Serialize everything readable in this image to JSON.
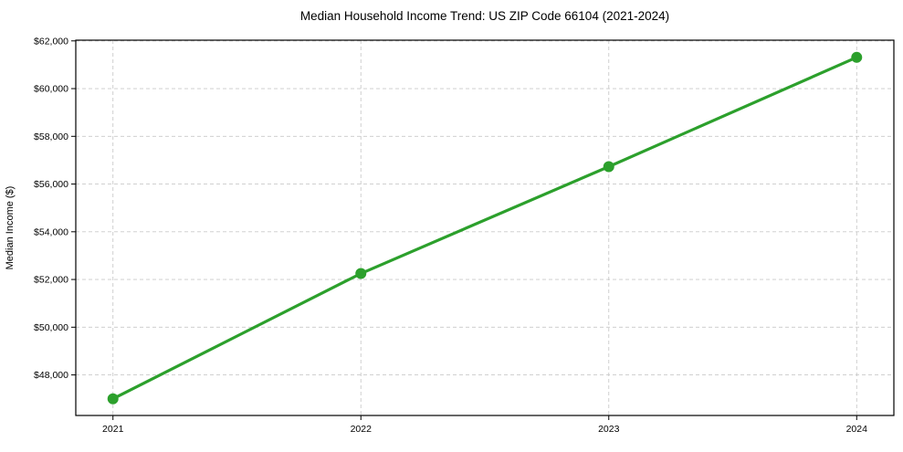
{
  "chart_data": {
    "type": "line",
    "title": "Median Household Income Trend: US ZIP Code 66104 (2021-2024)",
    "xlabel": "",
    "ylabel": "Median Income ($)",
    "x": [
      2021,
      2022,
      2023,
      2024
    ],
    "x_tick_labels": [
      "2021",
      "2022",
      "2023",
      "2024"
    ],
    "values": [
      47000,
      52250,
      56730,
      61310
    ],
    "series": [
      {
        "name": "Median household income",
        "values": [
          47000,
          52250,
          56730,
          61310
        ]
      }
    ],
    "y_ticks": [
      48000,
      50000,
      52000,
      54000,
      56000,
      58000,
      60000,
      62000
    ],
    "y_tick_labels": [
      "$48,000",
      "$50,000",
      "$52,000",
      "$54,000",
      "$56,000",
      "$58,000",
      "$60,000",
      "$62,000"
    ],
    "xlim": [
      2020.85,
      2024.15
    ],
    "ylim": [
      46300,
      62030
    ],
    "grid": true,
    "grid_style": "dashed",
    "legend": false,
    "colors": {
      "line": "#2ca02c",
      "marker": "#2ca02c",
      "grid": "#c9c9c9",
      "axis": "#000000",
      "text": "#000000",
      "background": "#ffffff"
    }
  }
}
